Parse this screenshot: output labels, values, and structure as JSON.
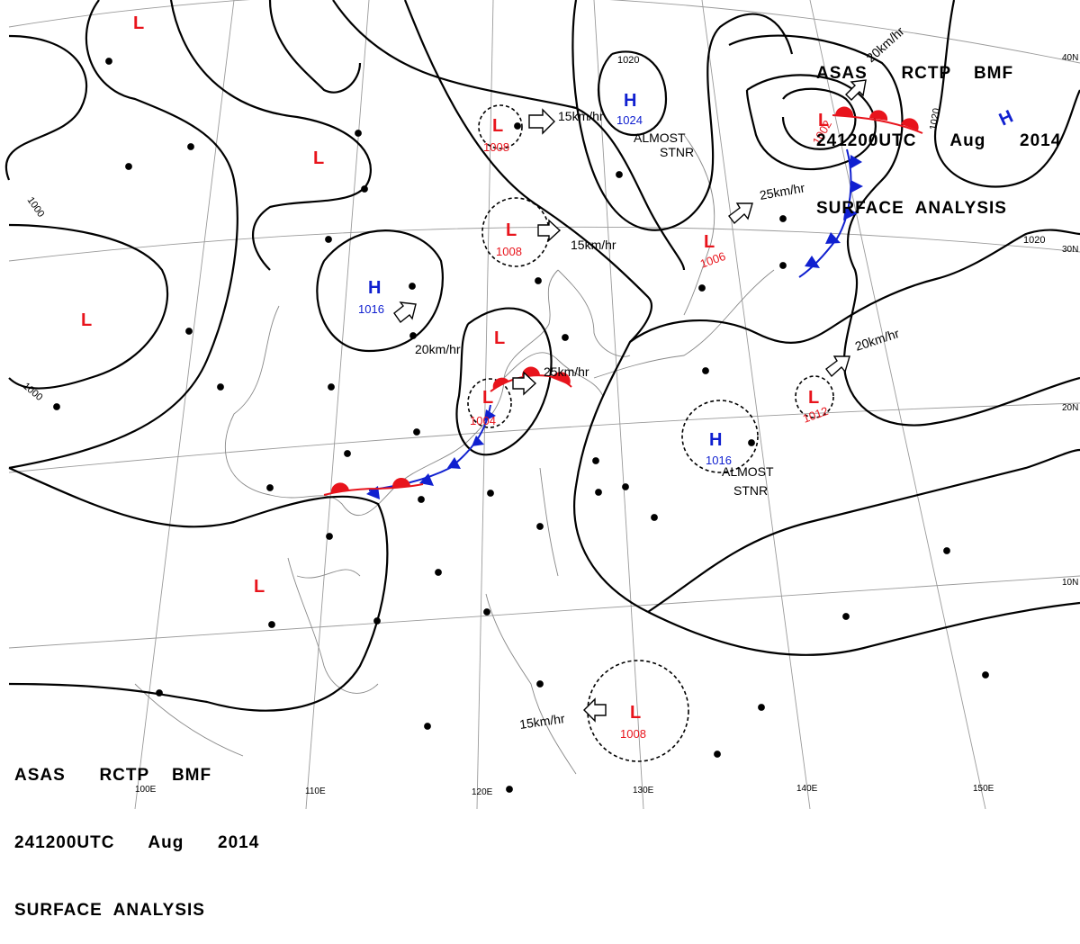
{
  "header": {
    "agency_line": "ASAS      RCTP    BMF",
    "time_line": "241200UTC      Aug      2014",
    "title": "SURFACE  ANALYSIS"
  },
  "longitude_labels": [
    "100E",
    "110E",
    "120E",
    "130E",
    "140E",
    "150E"
  ],
  "latitude_labels": [
    "40N",
    "30N",
    "20N",
    "10N"
  ],
  "pressure_centers": [
    {
      "type": "L",
      "value": ""
    },
    {
      "type": "L",
      "value": ""
    },
    {
      "type": "L",
      "value": ""
    },
    {
      "type": "L",
      "value": "1008"
    },
    {
      "type": "L",
      "value": "1008"
    },
    {
      "type": "H",
      "value": "1024"
    },
    {
      "type": "H",
      "value": "1016"
    },
    {
      "type": "L",
      "value": ""
    },
    {
      "type": "L",
      "value": "1004"
    },
    {
      "type": "L",
      "value": "1006"
    },
    {
      "type": "L",
      "value": "1002"
    },
    {
      "type": "H",
      "value": ""
    },
    {
      "type": "L",
      "value": "1012"
    },
    {
      "type": "H",
      "value": "1016"
    },
    {
      "type": "L",
      "value": ""
    },
    {
      "type": "L",
      "value": "1008"
    }
  ],
  "motion_labels": [
    "15km/hr",
    "15km/hr",
    "20km/hr",
    "25km/hr",
    "25km/hr",
    "20km/hr",
    "20km/hr",
    "15km/hr"
  ],
  "stationary_labels": [
    "ALMOST",
    "STNR",
    "ALMOST",
    "STNR"
  ],
  "isobar_labels": [
    "1000",
    "1000",
    "1020",
    "1020",
    "1020"
  ],
  "colors": {
    "low": "#e8141c",
    "high": "#1020d0",
    "warm_front": "#e8141c",
    "cold_front": "#1020d0",
    "isobar": "#000000",
    "grid": "#9a9a9a",
    "coast": "#888888"
  }
}
